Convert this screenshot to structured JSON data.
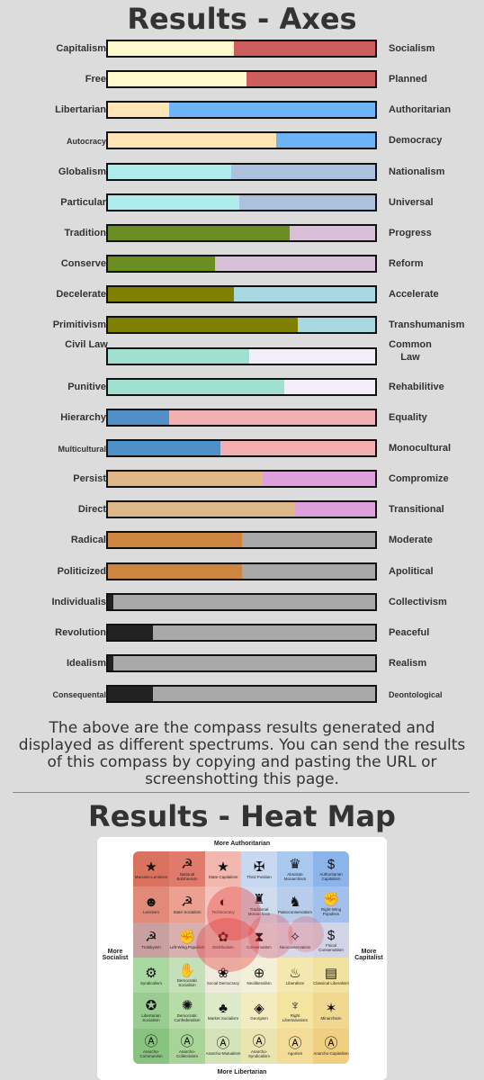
{
  "results_title": "Results - Axes",
  "axes": [
    {
      "left": "Capitalism",
      "right": "Socialism",
      "value": 0.47,
      "cl": "#fffacd",
      "cr": "#cd5c5c"
    },
    {
      "left": "Free",
      "right": "Planned",
      "value": 0.52,
      "cl": "#fffacd",
      "cr": "#cd5c5c"
    },
    {
      "left": "Libertarian",
      "right": "Authoritarian",
      "value": 0.23,
      "cl": "#ffe4b5",
      "cr": "#6cb4f5"
    },
    {
      "left": "Autocracy",
      "right": "Democracy",
      "value": 0.63,
      "cl": "#ffe4b5",
      "cr": "#6cb4f5",
      "small_left": true
    },
    {
      "left": "Globalism",
      "right": "Nationalism",
      "value": 0.46,
      "cl": "#b0ecec",
      "cr": "#adc2dc"
    },
    {
      "left": "Particular",
      "right": "Universal",
      "value": 0.49,
      "cl": "#b0ecec",
      "cr": "#adc2dc"
    },
    {
      "left": "Tradition",
      "right": "Progress",
      "value": 0.68,
      "cl": "#6b8e23",
      "cr": "#d8bfd8"
    },
    {
      "left": "Conserve",
      "right": "Reform",
      "value": 0.4,
      "cl": "#6b8e23",
      "cr": "#d8bfd8"
    },
    {
      "left": "Decelerate",
      "right": "Accelerate",
      "value": 0.47,
      "cl": "#808000",
      "cr": "#a8d8e2"
    },
    {
      "left": "Primitivism",
      "right": "Transhumanism",
      "value": 0.71,
      "cl": "#808000",
      "cr": "#a8d8e2"
    },
    {
      "left": "Civil Law",
      "right": "Common Law",
      "value": 0.53,
      "cl": "#a0e0d0",
      "cr": "#f4eef8",
      "two_line": true
    },
    {
      "left": "Punitive",
      "right": "Rehabilitive",
      "value": 0.66,
      "cl": "#a0e0d0",
      "cr": "#f4eef8"
    },
    {
      "left": "Hierarchy",
      "right": "Equality",
      "value": 0.23,
      "cl": "#4f90c6",
      "cr": "#f4b0b0"
    },
    {
      "left": "Multicultural",
      "right": "Monocultural",
      "value": 0.42,
      "cl": "#4f90c6",
      "cr": "#f4b0b0",
      "small_left": true
    },
    {
      "left": "Persist",
      "right": "Compromize",
      "value": 0.58,
      "cl": "#dfb88a",
      "cr": "#dda0dd"
    },
    {
      "left": "Direct",
      "right": "Transitional",
      "value": 0.7,
      "cl": "#dfb88a",
      "cr": "#dda0dd"
    },
    {
      "left": "Radical",
      "right": "Moderate",
      "value": 0.5,
      "cl": "#cd853f",
      "cr": "#a9a9a9"
    },
    {
      "left": "Politicized",
      "right": "Apolitical",
      "value": 0.5,
      "cl": "#cd853f",
      "cr": "#a9a9a9"
    },
    {
      "left": "Individualis",
      "right": "Collectivism",
      "value": 0.02,
      "cl": "#222222",
      "cr": "#a9a9a9"
    },
    {
      "left": "Revolution",
      "right": "Peaceful",
      "value": 0.17,
      "cl": "#222222",
      "cr": "#a9a9a9"
    },
    {
      "left": "Idealism",
      "right": "Realism",
      "value": 0.02,
      "cl": "#222222",
      "cr": "#a9a9a9"
    },
    {
      "left": "Consequental",
      "right": "Deontological",
      "value": 0.17,
      "cl": "#222222",
      "cr": "#a9a9a9",
      "small_left": true,
      "small_right": true
    }
  ],
  "description": "The above are the compass results generated and displayed as different spectrums. You can send the results of this compass by copying and pasting the URL or screenshotting this page.",
  "heatmap_title": "Results - Heat Map",
  "heatmap": {
    "top": "More Authoritarian",
    "bottom": "More Libertarian",
    "left": "More Socialist",
    "right": "More Capitalist",
    "cells": [
      {
        "name": "Marxism-Leninism",
        "icon": "★",
        "bg": "#d9735f"
      },
      {
        "name": "National Bolshevism",
        "icon": "☭",
        "bg": "#e07a6a"
      },
      {
        "name": "State Capitalism",
        "icon": "★",
        "bg": "#f2b8b0"
      },
      {
        "name": "Third Position",
        "icon": "✠",
        "bg": "#c8d8f0"
      },
      {
        "name": "Absolute Monarchism",
        "icon": "♛",
        "bg": "#a8c8f0"
      },
      {
        "name": "Authoritarian Capitalism",
        "icon": "$",
        "bg": "#8ab4ea"
      },
      {
        "name": "Leninism",
        "icon": "☻",
        "bg": "#e28a7a"
      },
      {
        "name": "State Socialism",
        "icon": "☭",
        "bg": "#eba090"
      },
      {
        "name": "Technocracy",
        "icon": "◐",
        "bg": "#f4c4bc"
      },
      {
        "name": "Traditional Monarchism",
        "icon": "♜",
        "bg": "#cfdcee"
      },
      {
        "name": "Paleoconservatism",
        "icon": "♞",
        "bg": "#b8cceb"
      },
      {
        "name": "Right-Wing Populism",
        "icon": "✊",
        "bg": "#a3c0ea"
      },
      {
        "name": "Trotskyism",
        "icon": "☭",
        "bg": "#c9a0a0"
      },
      {
        "name": "Left-Wing Populism",
        "icon": "✊",
        "bg": "#d8b0b0"
      },
      {
        "name": "Distributism",
        "icon": "✿",
        "bg": "#e6c8c8"
      },
      {
        "name": "Conservatism",
        "icon": "⧗",
        "bg": "#e0dde8"
      },
      {
        "name": "Neoconservatism",
        "icon": "✧",
        "bg": "#d8d8ea"
      },
      {
        "name": "Fiscal Conservatism",
        "icon": "$",
        "bg": "#d0d4e6"
      },
      {
        "name": "Syndicalism",
        "icon": "⚙",
        "bg": "#a8d8a0"
      },
      {
        "name": "Democratic Socialism",
        "icon": "✋",
        "bg": "#c4e0b8"
      },
      {
        "name": "Social Democracy",
        "icon": "❀",
        "bg": "#f0eadc"
      },
      {
        "name": "Neoliberalism",
        "icon": "⊕",
        "bg": "#f4efd8"
      },
      {
        "name": "Liberalism",
        "icon": "♨",
        "bg": "#f4e8b0"
      },
      {
        "name": "Classical Liberalism",
        "icon": "▤",
        "bg": "#f2e2a0"
      },
      {
        "name": "Libertarian Socialism",
        "icon": "✪",
        "bg": "#98cc90"
      },
      {
        "name": "Democratic Confederalism",
        "icon": "✺",
        "bg": "#b8dca8"
      },
      {
        "name": "Market Socialism",
        "icon": "♣",
        "bg": "#dceac8"
      },
      {
        "name": "Georgism",
        "icon": "◈",
        "bg": "#f2ecc0"
      },
      {
        "name": "Right Libertarianism",
        "icon": "♆",
        "bg": "#f4e4a0"
      },
      {
        "name": "Minarchism",
        "icon": "✶",
        "bg": "#f0d890"
      },
      {
        "name": "Anarcho-Communism",
        "icon": "Ⓐ",
        "bg": "#88c480"
      },
      {
        "name": "Anarcho-Collectivism",
        "icon": "Ⓐ",
        "bg": "#a8d498"
      },
      {
        "name": "Anarcho-Mutualism",
        "icon": "Ⓐ",
        "bg": "#d4e4b8"
      },
      {
        "name": "Anarcho-Syndicalism",
        "icon": "Ⓐ",
        "bg": "#eae4b0"
      },
      {
        "name": "Agorism",
        "icon": "Ⓐ",
        "bg": "#f2dc98"
      },
      {
        "name": "Anarcho-Capitalism",
        "icon": "Ⓐ",
        "bg": "#f0d080"
      }
    ]
  }
}
